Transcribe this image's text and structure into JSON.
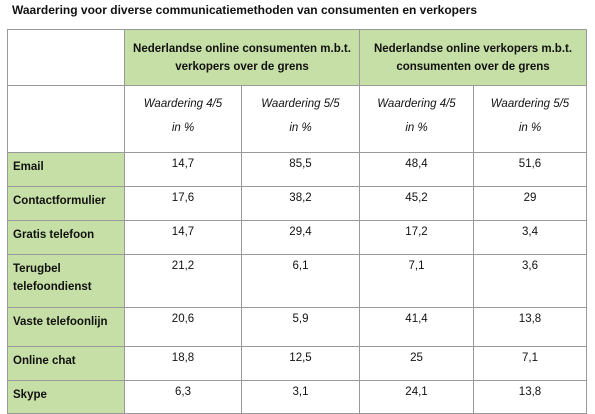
{
  "title": "Waardering voor diverse communicatiemethoden van consumenten en verkopers",
  "chart_data": {
    "type": "table",
    "column_groups": [
      "Nederlandse online consumenten m.b.t. verkopers over de grens",
      "Nederlandse online verkopers m.b.t. consumenten over de grens"
    ],
    "subheaders": [
      {
        "label": "Waardering 4/5",
        "unit": "in %"
      },
      {
        "label": "Waardering 5/5",
        "unit": "in %"
      },
      {
        "label": "Waardering 4/5",
        "unit": "in %"
      },
      {
        "label": "Waardering 5/5",
        "unit": "in %"
      }
    ],
    "rows": [
      {
        "label": "Email",
        "values": [
          "14,7",
          "85,5",
          "48,4",
          "51,6"
        ]
      },
      {
        "label": "Contactformulier",
        "values": [
          "17,6",
          "38,2",
          "45,2",
          "29"
        ]
      },
      {
        "label": "Gratis telefoon",
        "values": [
          "14,7",
          "29,4",
          "17,2",
          "3,4"
        ]
      },
      {
        "label": "Terugbel telefoondienst",
        "values": [
          "21,2",
          "6,1",
          "7,1",
          "3,6"
        ]
      },
      {
        "label": "Vaste telefoonlijn",
        "values": [
          "20,6",
          "5,9",
          "41,4",
          "13,8"
        ]
      },
      {
        "label": "Online chat",
        "values": [
          "18,8",
          "12,5",
          "25",
          "7,1"
        ]
      },
      {
        "label": "Skype",
        "values": [
          "6,3",
          "3,1",
          "24,1",
          "13,8"
        ]
      }
    ]
  }
}
